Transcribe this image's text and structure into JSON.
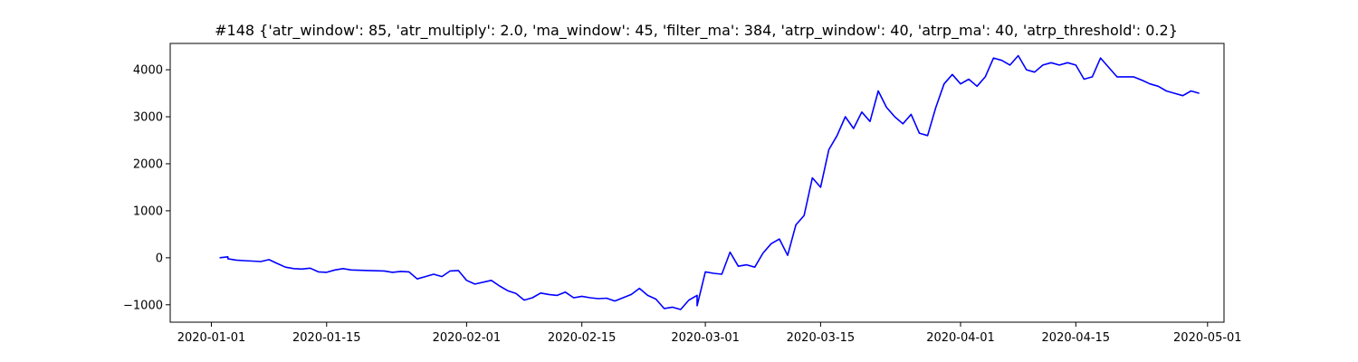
{
  "chart_data": {
    "type": "line",
    "title": "#148 {'atr_window': 85, 'atr_multiply': 2.0, 'ma_window': 45, 'filter_ma': 384, 'atrp_window': 40, 'atrp_ma': 40, 'atrp_threshold': 0.2}",
    "xlabel": "",
    "ylabel": "",
    "x_axis_type": "date",
    "xlim": [
      "2019-12-27",
      "2020-05-03"
    ],
    "ylim": [
      -1370,
      4560
    ],
    "xticks": [
      "2020-01-01",
      "2020-01-15",
      "2020-02-01",
      "2020-02-15",
      "2020-03-01",
      "2020-03-15",
      "2020-04-01",
      "2020-04-15",
      "2020-05-01"
    ],
    "yticks": [
      -1000,
      0,
      1000,
      2000,
      3000,
      4000
    ],
    "grid": false,
    "legend": "none",
    "series": [
      {
        "color": "#0000ff",
        "points": [
          [
            "2020-01-02",
            0
          ],
          [
            "2020-01-03",
            20
          ],
          [
            "2020-01-03",
            -20
          ],
          [
            "2020-01-04",
            -50
          ],
          [
            "2020-01-05",
            -60
          ],
          [
            "2020-01-06",
            -70
          ],
          [
            "2020-01-07",
            -80
          ],
          [
            "2020-01-08",
            -40
          ],
          [
            "2020-01-09",
            -120
          ],
          [
            "2020-01-10",
            -200
          ],
          [
            "2020-01-11",
            -230
          ],
          [
            "2020-01-12",
            -240
          ],
          [
            "2020-01-13",
            -220
          ],
          [
            "2020-01-14",
            -300
          ],
          [
            "2020-01-15",
            -310
          ],
          [
            "2020-01-16",
            -260
          ],
          [
            "2020-01-17",
            -230
          ],
          [
            "2020-01-18",
            -260
          ],
          [
            "2020-01-20",
            -270
          ],
          [
            "2020-01-22",
            -280
          ],
          [
            "2020-01-23",
            -310
          ],
          [
            "2020-01-24",
            -290
          ],
          [
            "2020-01-25",
            -300
          ],
          [
            "2020-01-26",
            -450
          ],
          [
            "2020-01-27",
            -400
          ],
          [
            "2020-01-28",
            -350
          ],
          [
            "2020-01-29",
            -400
          ],
          [
            "2020-01-30",
            -280
          ],
          [
            "2020-01-31",
            -270
          ],
          [
            "2020-02-01",
            -480
          ],
          [
            "2020-02-02",
            -560
          ],
          [
            "2020-02-04",
            -480
          ],
          [
            "2020-02-05",
            -600
          ],
          [
            "2020-02-06",
            -700
          ],
          [
            "2020-02-07",
            -760
          ],
          [
            "2020-02-08",
            -900
          ],
          [
            "2020-02-09",
            -850
          ],
          [
            "2020-02-10",
            -750
          ],
          [
            "2020-02-11",
            -780
          ],
          [
            "2020-02-12",
            -800
          ],
          [
            "2020-02-13",
            -730
          ],
          [
            "2020-02-14",
            -850
          ],
          [
            "2020-02-15",
            -820
          ],
          [
            "2020-02-16",
            -850
          ],
          [
            "2020-02-17",
            -870
          ],
          [
            "2020-02-18",
            -860
          ],
          [
            "2020-02-19",
            -920
          ],
          [
            "2020-02-20",
            -850
          ],
          [
            "2020-02-21",
            -780
          ],
          [
            "2020-02-22",
            -650
          ],
          [
            "2020-02-23",
            -800
          ],
          [
            "2020-02-24",
            -880
          ],
          [
            "2020-02-25",
            -1080
          ],
          [
            "2020-02-26",
            -1050
          ],
          [
            "2020-02-27",
            -1100
          ],
          [
            "2020-02-28",
            -900
          ],
          [
            "2020-02-29",
            -800
          ],
          [
            "2020-02-29",
            -1020
          ],
          [
            "2020-03-01",
            -300
          ],
          [
            "2020-03-02",
            -330
          ],
          [
            "2020-03-03",
            -350
          ],
          [
            "2020-03-04",
            120
          ],
          [
            "2020-03-05",
            -180
          ],
          [
            "2020-03-06",
            -150
          ],
          [
            "2020-03-07",
            -200
          ],
          [
            "2020-03-08",
            100
          ],
          [
            "2020-03-09",
            300
          ],
          [
            "2020-03-10",
            400
          ],
          [
            "2020-03-11",
            50
          ],
          [
            "2020-03-12",
            700
          ],
          [
            "2020-03-13",
            900
          ],
          [
            "2020-03-14",
            1700
          ],
          [
            "2020-03-15",
            1500
          ],
          [
            "2020-03-16",
            2300
          ],
          [
            "2020-03-17",
            2600
          ],
          [
            "2020-03-18",
            3000
          ],
          [
            "2020-03-19",
            2750
          ],
          [
            "2020-03-20",
            3100
          ],
          [
            "2020-03-21",
            2900
          ],
          [
            "2020-03-22",
            3550
          ],
          [
            "2020-03-23",
            3200
          ],
          [
            "2020-03-24",
            3000
          ],
          [
            "2020-03-25",
            2850
          ],
          [
            "2020-03-26",
            3050
          ],
          [
            "2020-03-27",
            2650
          ],
          [
            "2020-03-28",
            2600
          ],
          [
            "2020-03-29",
            3200
          ],
          [
            "2020-03-30",
            3700
          ],
          [
            "2020-03-31",
            3900
          ],
          [
            "2020-04-01",
            3700
          ],
          [
            "2020-04-02",
            3800
          ],
          [
            "2020-04-03",
            3650
          ],
          [
            "2020-04-04",
            3850
          ],
          [
            "2020-04-05",
            4250
          ],
          [
            "2020-04-06",
            4200
          ],
          [
            "2020-04-07",
            4100
          ],
          [
            "2020-04-08",
            4300
          ],
          [
            "2020-04-09",
            4000
          ],
          [
            "2020-04-10",
            3950
          ],
          [
            "2020-04-11",
            4100
          ],
          [
            "2020-04-12",
            4150
          ],
          [
            "2020-04-13",
            4100
          ],
          [
            "2020-04-14",
            4150
          ],
          [
            "2020-04-15",
            4100
          ],
          [
            "2020-04-16",
            3800
          ],
          [
            "2020-04-17",
            3850
          ],
          [
            "2020-04-18",
            4250
          ],
          [
            "2020-04-19",
            4050
          ],
          [
            "2020-04-20",
            3850
          ],
          [
            "2020-04-22",
            3850
          ],
          [
            "2020-04-23",
            3780
          ],
          [
            "2020-04-24",
            3700
          ],
          [
            "2020-04-25",
            3650
          ],
          [
            "2020-04-26",
            3550
          ],
          [
            "2020-04-27",
            3500
          ],
          [
            "2020-04-28",
            3450
          ],
          [
            "2020-04-29",
            3550
          ],
          [
            "2020-04-30",
            3500
          ]
        ]
      }
    ]
  }
}
